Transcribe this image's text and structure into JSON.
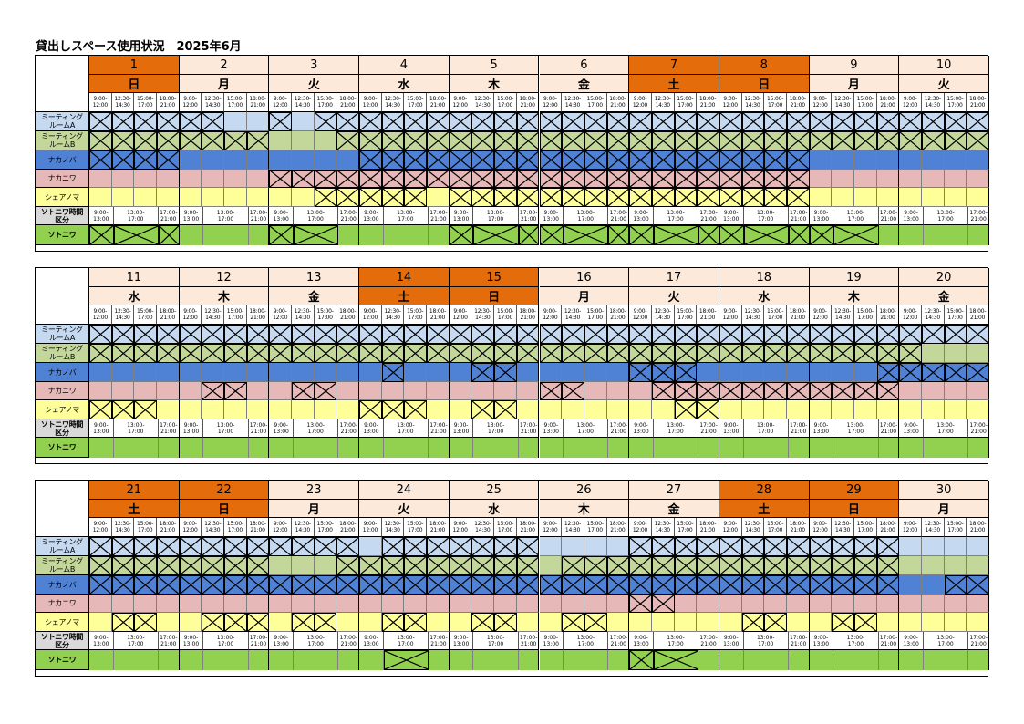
{
  "title": "貸出しスペース使用状況　2025年6月",
  "slot_labels": [
    [
      "9:00-",
      "12:00"
    ],
    [
      "12:30-",
      "14:30"
    ],
    [
      "15:00-",
      "17:00"
    ],
    [
      "18:00-",
      "21:00"
    ]
  ],
  "outdoor_slot_labels": [
    [
      "9:00-",
      "13:00"
    ],
    [
      "13:00-",
      "17:00"
    ],
    [
      "17:00-",
      "21:00"
    ]
  ],
  "rows": [
    {
      "label": "ミーティング\nルームA",
      "color": "#c5d9f1"
    },
    {
      "label": "ミーティング\nルームB",
      "color": "#c4d79b"
    },
    {
      "label": "ナカノバ",
      "color": "#4f81d4"
    },
    {
      "label": "ナカニワ",
      "color": "#e6b8b7"
    },
    {
      "label": "シェアノマ",
      "color": "#ffff99"
    }
  ],
  "outdoor_header_label": "ソトニワ時間\n区分",
  "outdoor_row": {
    "label": "ソトニワ",
    "color": "#92d050"
  },
  "blocks": [
    {
      "days": [
        {
          "date": "1",
          "weekday": "日",
          "holiday": true
        },
        {
          "date": "2",
          "weekday": "月",
          "holiday": false
        },
        {
          "date": "3",
          "weekday": "火",
          "holiday": false
        },
        {
          "date": "4",
          "weekday": "水",
          "holiday": false
        },
        {
          "date": "5",
          "weekday": "木",
          "holiday": false
        },
        {
          "date": "6",
          "weekday": "金",
          "holiday": false
        },
        {
          "date": "7",
          "weekday": "土",
          "holiday": true
        },
        {
          "date": "8",
          "weekday": "日",
          "holiday": true
        },
        {
          "date": "9",
          "weekday": "月",
          "holiday": false
        },
        {
          "date": "10",
          "weekday": "火",
          "holiday": false
        }
      ],
      "bookings": [
        [
          1,
          1,
          1,
          1,
          1,
          1,
          0,
          0,
          1,
          0,
          1,
          1,
          1,
          1,
          1,
          1,
          1,
          1,
          1,
          1,
          1,
          1,
          1,
          1,
          1,
          1,
          1,
          1,
          1,
          1,
          1,
          1,
          1,
          1,
          1,
          1,
          1,
          1,
          1,
          1
        ],
        [
          1,
          1,
          1,
          1,
          1,
          1,
          1,
          1,
          0,
          0,
          0,
          1,
          1,
          1,
          1,
          1,
          1,
          1,
          1,
          1,
          1,
          1,
          1,
          1,
          1,
          1,
          1,
          1,
          1,
          1,
          1,
          1,
          1,
          1,
          1,
          1,
          1,
          1,
          1,
          1
        ],
        [
          1,
          1,
          1,
          1,
          0,
          0,
          0,
          0,
          0,
          0,
          0,
          0,
          1,
          1,
          1,
          1,
          1,
          1,
          1,
          1,
          1,
          1,
          1,
          1,
          1,
          1,
          1,
          1,
          1,
          1,
          1,
          1,
          0,
          0,
          0,
          0,
          0,
          0,
          0,
          0
        ],
        [
          0,
          0,
          0,
          0,
          0,
          0,
          0,
          0,
          1,
          1,
          1,
          1,
          1,
          1,
          1,
          1,
          1,
          1,
          1,
          1,
          1,
          1,
          1,
          1,
          1,
          1,
          1,
          1,
          1,
          1,
          1,
          1,
          0,
          0,
          0,
          0,
          0,
          0,
          0,
          0
        ],
        [
          0,
          0,
          0,
          0,
          0,
          0,
          0,
          0,
          0,
          0,
          1,
          1,
          1,
          1,
          1,
          0,
          1,
          1,
          1,
          1,
          1,
          1,
          1,
          1,
          1,
          1,
          1,
          1,
          1,
          1,
          1,
          1,
          0,
          0,
          0,
          0,
          0,
          0,
          0,
          0
        ]
      ],
      "outdoor": [
        [
          1,
          1,
          1
        ],
        [
          0,
          0,
          0
        ],
        [
          1,
          1,
          0
        ],
        [
          0,
          0,
          0
        ],
        [
          1,
          1,
          1
        ],
        [
          1,
          1,
          1
        ],
        [
          1,
          1,
          1
        ],
        [
          1,
          1,
          1
        ],
        [
          1,
          1,
          0
        ],
        [
          0,
          0,
          0
        ]
      ]
    },
    {
      "days": [
        {
          "date": "11",
          "weekday": "水",
          "holiday": false
        },
        {
          "date": "12",
          "weekday": "木",
          "holiday": false
        },
        {
          "date": "13",
          "weekday": "金",
          "holiday": false
        },
        {
          "date": "14",
          "weekday": "土",
          "holiday": true
        },
        {
          "date": "15",
          "weekday": "日",
          "holiday": true
        },
        {
          "date": "16",
          "weekday": "月",
          "holiday": false
        },
        {
          "date": "17",
          "weekday": "火",
          "holiday": false
        },
        {
          "date": "18",
          "weekday": "水",
          "holiday": false
        },
        {
          "date": "19",
          "weekday": "木",
          "holiday": false
        },
        {
          "date": "20",
          "weekday": "金",
          "holiday": false
        }
      ],
      "bookings": [
        [
          1,
          1,
          1,
          1,
          1,
          1,
          1,
          1,
          1,
          1,
          1,
          1,
          1,
          1,
          1,
          1,
          1,
          1,
          1,
          1,
          1,
          1,
          1,
          1,
          1,
          1,
          1,
          1,
          1,
          1,
          1,
          1,
          1,
          1,
          1,
          1,
          1,
          1,
          1,
          1
        ],
        [
          1,
          1,
          1,
          1,
          1,
          1,
          1,
          1,
          1,
          1,
          1,
          1,
          1,
          1,
          1,
          1,
          1,
          1,
          1,
          1,
          1,
          1,
          1,
          1,
          1,
          1,
          1,
          1,
          1,
          1,
          1,
          1,
          1,
          1,
          1,
          1,
          1,
          0,
          0,
          0
        ],
        [
          0,
          0,
          0,
          0,
          0,
          0,
          0,
          0,
          0,
          0,
          0,
          0,
          0,
          1,
          0,
          0,
          0,
          1,
          1,
          0,
          0,
          0,
          0,
          0,
          1,
          1,
          1,
          0,
          0,
          0,
          0,
          0,
          0,
          0,
          0,
          1,
          1,
          1,
          1,
          1
        ],
        [
          0,
          0,
          0,
          0,
          0,
          1,
          1,
          0,
          0,
          1,
          1,
          0,
          0,
          0,
          0,
          0,
          0,
          0,
          0,
          0,
          1,
          1,
          0,
          0,
          0,
          1,
          1,
          1,
          1,
          1,
          1,
          1,
          1,
          1,
          1,
          1,
          0,
          0,
          0,
          0
        ],
        [
          1,
          1,
          1,
          0,
          0,
          0,
          0,
          0,
          0,
          0,
          0,
          0,
          1,
          1,
          1,
          0,
          0,
          1,
          1,
          0,
          0,
          0,
          0,
          0,
          0,
          0,
          1,
          1,
          0,
          0,
          0,
          0,
          0,
          0,
          0,
          0,
          0,
          0,
          0,
          0
        ]
      ],
      "outdoor": [
        [
          0,
          0,
          0
        ],
        [
          0,
          0,
          0
        ],
        [
          0,
          0,
          0
        ],
        [
          0,
          0,
          0
        ],
        [
          0,
          0,
          0
        ],
        [
          0,
          0,
          0
        ],
        [
          0,
          0,
          0
        ],
        [
          0,
          0,
          0
        ],
        [
          0,
          0,
          0
        ],
        [
          0,
          0,
          0
        ]
      ]
    },
    {
      "days": [
        {
          "date": "21",
          "weekday": "土",
          "holiday": true
        },
        {
          "date": "22",
          "weekday": "日",
          "holiday": true
        },
        {
          "date": "23",
          "weekday": "月",
          "holiday": false
        },
        {
          "date": "24",
          "weekday": "火",
          "holiday": false
        },
        {
          "date": "25",
          "weekday": "水",
          "holiday": false
        },
        {
          "date": "26",
          "weekday": "木",
          "holiday": false
        },
        {
          "date": "27",
          "weekday": "金",
          "holiday": false
        },
        {
          "date": "28",
          "weekday": "土",
          "holiday": true
        },
        {
          "date": "29",
          "weekday": "日",
          "holiday": true
        },
        {
          "date": "30",
          "weekday": "月",
          "holiday": false
        }
      ],
      "bookings": [
        [
          1,
          1,
          1,
          1,
          1,
          1,
          1,
          1,
          1,
          1,
          1,
          1,
          0,
          1,
          1,
          1,
          1,
          1,
          1,
          1,
          0,
          0,
          0,
          0,
          1,
          1,
          1,
          1,
          1,
          1,
          1,
          1,
          1,
          1,
          1,
          1,
          0,
          0,
          0,
          0
        ],
        [
          1,
          1,
          1,
          1,
          1,
          1,
          1,
          1,
          0,
          0,
          0,
          1,
          1,
          1,
          1,
          1,
          1,
          1,
          1,
          1,
          0,
          1,
          1,
          1,
          1,
          1,
          1,
          1,
          1,
          1,
          1,
          1,
          1,
          1,
          1,
          1,
          0,
          0,
          0,
          0
        ],
        [
          1,
          1,
          1,
          1,
          1,
          1,
          1,
          1,
          1,
          1,
          1,
          1,
          1,
          1,
          1,
          1,
          1,
          1,
          1,
          1,
          1,
          1,
          1,
          1,
          1,
          1,
          1,
          1,
          1,
          1,
          1,
          1,
          1,
          1,
          1,
          1,
          0,
          0,
          1,
          1
        ],
        [
          0,
          0,
          0,
          0,
          0,
          0,
          0,
          0,
          0,
          0,
          0,
          0,
          0,
          0,
          0,
          0,
          0,
          0,
          0,
          0,
          0,
          0,
          0,
          0,
          1,
          1,
          0,
          0,
          0,
          0,
          0,
          0,
          0,
          0,
          0,
          0,
          0,
          0,
          0,
          0
        ],
        [
          0,
          1,
          1,
          0,
          0,
          1,
          1,
          1,
          0,
          1,
          1,
          0,
          0,
          1,
          1,
          0,
          0,
          1,
          1,
          0,
          0,
          1,
          1,
          0,
          0,
          0,
          0,
          0,
          0,
          1,
          1,
          0,
          0,
          1,
          1,
          0,
          0,
          0,
          0,
          0
        ]
      ],
      "outdoor": [
        [
          0,
          0,
          0
        ],
        [
          0,
          0,
          0
        ],
        [
          0,
          0,
          0
        ],
        [
          0,
          1,
          0
        ],
        [
          0,
          0,
          0
        ],
        [
          0,
          0,
          0
        ],
        [
          1,
          1,
          0
        ],
        [
          0,
          0,
          0
        ],
        [
          0,
          0,
          0
        ],
        [
          0,
          0,
          0
        ]
      ]
    }
  ]
}
